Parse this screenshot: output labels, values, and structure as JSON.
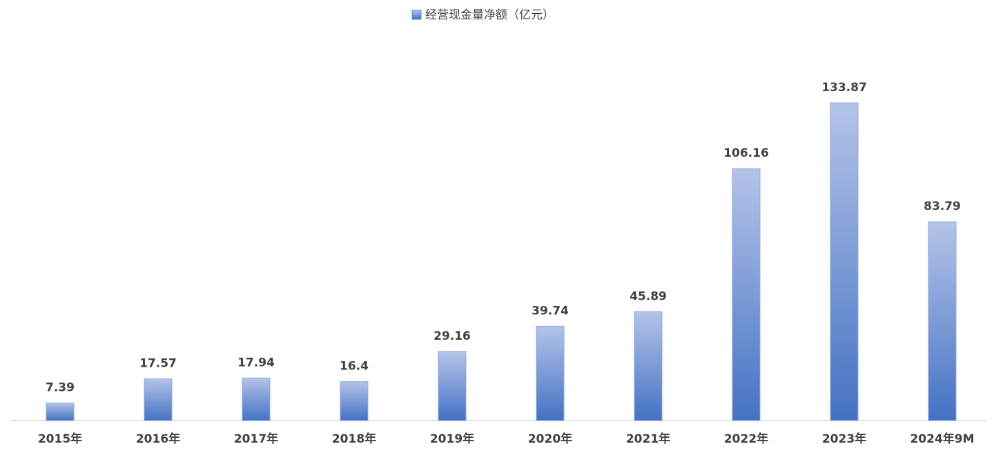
{
  "chart_data": {
    "type": "bar",
    "categories": [
      "2015年",
      "2016年",
      "2017年",
      "2018年",
      "2019年",
      "2020年",
      "2021年",
      "2022年",
      "2023年",
      "2024年9M"
    ],
    "series": [
      {
        "name": "经营现金量净额（亿元）",
        "color": "#4472c4",
        "values": [
          7.39,
          17.57,
          17.94,
          16.4,
          29.16,
          39.74,
          45.89,
          106.16,
          133.87,
          83.79
        ]
      }
    ]
  }
}
